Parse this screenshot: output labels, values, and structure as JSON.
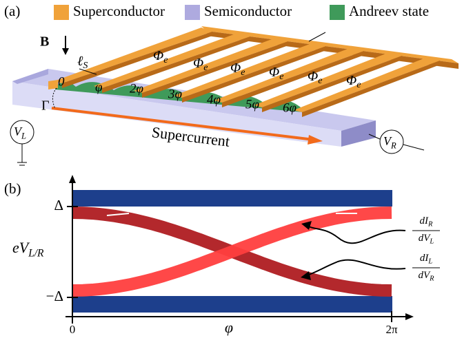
{
  "panel_a": {
    "label": "(a)",
    "legend": [
      "Superconductor",
      "Semiconductor",
      "Andreev state"
    ],
    "field": "B",
    "length": {
      "main": "ℓ",
      "sub": "S"
    },
    "flux_labels": [
      {
        "main": "Φ",
        "sub": "e"
      },
      {
        "main": "Φ",
        "sub": "e"
      },
      {
        "main": "Φ",
        "sub": "e"
      },
      {
        "main": "Φ",
        "sub": "e"
      },
      {
        "main": "Φ",
        "sub": "e"
      },
      {
        "main": "Φ",
        "sub": "e"
      }
    ],
    "phase_labels": [
      "0",
      "φ",
      "2φ",
      "3φ",
      "4φ",
      "5φ",
      "6φ"
    ],
    "coupling": "Γ",
    "voltage_left": {
      "main": "V",
      "sub": "L"
    },
    "voltage_right": {
      "main": "V",
      "sub": "R"
    },
    "current": "Supercurrent"
  },
  "panel_b": {
    "label": "(b)",
    "y_label": {
      "main": "eV",
      "sub": "L/R"
    },
    "y_ticks": [
      "Δ",
      "−Δ"
    ],
    "x_ticks": [
      "0",
      "2π"
    ],
    "x_label": "φ",
    "annotations": [
      {
        "numerator": {
          "main": "dI",
          "sub": "R"
        },
        "denominator": {
          "main": "dV",
          "sub": "L"
        }
      },
      {
        "numerator": {
          "main": "dI",
          "sub": "L"
        },
        "denominator": {
          "main": "dV",
          "sub": "R"
        }
      }
    ]
  }
}
